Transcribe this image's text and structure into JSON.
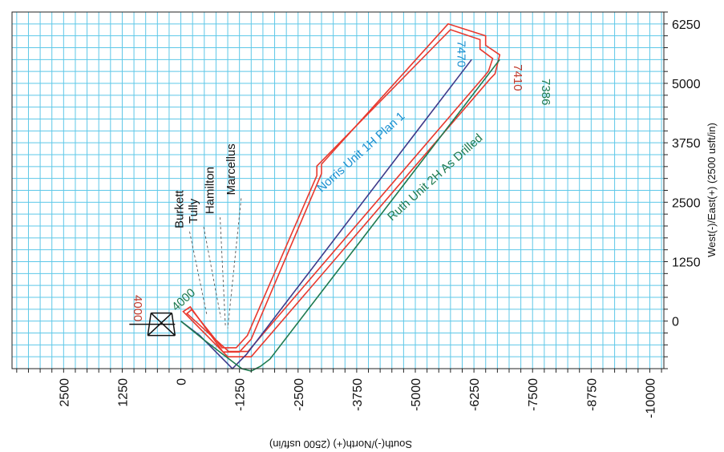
{
  "chart_data": {
    "type": "line",
    "title": "",
    "xlabel": "West(-)/East(+) (2500 usft/in)",
    "ylabel": "South(-)/North(+) (2500 usft/in)",
    "ew_range": [
      -1000,
      6500
    ],
    "ns_range": [
      3600,
      -10300
    ],
    "ew_ticks": [
      {
        "v": 0,
        "label": "0"
      },
      {
        "v": 1250,
        "label": "1250"
      },
      {
        "v": 2500,
        "label": "2500"
      },
      {
        "v": 3750,
        "label": "3750"
      },
      {
        "v": 5000,
        "label": "5000"
      },
      {
        "v": 6250,
        "label": "6250"
      }
    ],
    "ns_ticks": [
      {
        "v": 2500,
        "label": "2500"
      },
      {
        "v": 1250,
        "label": "1250"
      },
      {
        "v": 0,
        "label": "0"
      },
      {
        "v": -1250,
        "label": "-1250"
      },
      {
        "v": -2500,
        "label": "-2500"
      },
      {
        "v": -3750,
        "label": "-3750"
      },
      {
        "v": -5000,
        "label": "-5000"
      },
      {
        "v": -6250,
        "label": "-6250"
      },
      {
        "v": -7500,
        "label": "-7500"
      },
      {
        "v": -8750,
        "label": "-8750"
      },
      {
        "v": -10000,
        "label": "-10000"
      }
    ],
    "grid": true,
    "colors": {
      "grid": "#5ec8e8",
      "norris": "#3f3a8a",
      "ruth": "#1f7a4f",
      "boundary": "#e8392e",
      "norris_label": "#1a8fd0",
      "label_red": "#c0392b"
    },
    "series": [
      {
        "name": "Norris Unit 1H Plan 1",
        "key": "norris",
        "points": [
          [
            0,
            0
          ],
          [
            -300,
            -400
          ],
          [
            -600,
            -700
          ],
          [
            -900,
            -1000
          ],
          [
            -1000,
            -1100
          ],
          [
            -900,
            -1200
          ],
          [
            -700,
            -1400
          ],
          [
            5500,
            -6200
          ]
        ]
      },
      {
        "name": "Ruth Unit 2H As Drilled",
        "key": "ruth",
        "points": [
          [
            0,
            0
          ],
          [
            -400,
            -500
          ],
          [
            -700,
            -900
          ],
          [
            -1000,
            -1300
          ],
          [
            -1050,
            -1500
          ],
          [
            -950,
            -1700
          ],
          [
            -800,
            -1900
          ],
          [
            5500,
            -6800
          ]
        ]
      }
    ],
    "boundaries": [
      {
        "key": "outer",
        "points": [
          [
            300,
            -200
          ],
          [
            -650,
            -900
          ],
          [
            -650,
            -1250
          ],
          [
            -380,
            -1500
          ],
          [
            3100,
            -3000
          ],
          [
            3300,
            -3000
          ],
          [
            6250,
            -5700
          ],
          [
            6000,
            -6500
          ],
          [
            5800,
            -6500
          ],
          [
            5600,
            -6800
          ],
          [
            5200,
            -6700
          ],
          [
            5100,
            -6600
          ],
          [
            -750,
            -1500
          ],
          [
            -750,
            -1000
          ],
          [
            200,
            -50
          ]
        ]
      },
      {
        "key": "inner",
        "points": [
          [
            240,
            -230
          ],
          [
            -560,
            -880
          ],
          [
            -560,
            -1180
          ],
          [
            -300,
            -1420
          ],
          [
            3060,
            -2900
          ],
          [
            3260,
            -2900
          ],
          [
            6130,
            -5750
          ],
          [
            5920,
            -6380
          ],
          [
            5720,
            -6380
          ],
          [
            5520,
            -6650
          ],
          [
            5260,
            -6560
          ],
          [
            5160,
            -6480
          ],
          [
            -640,
            -1430
          ],
          [
            -640,
            -1020
          ],
          [
            160,
            -130
          ]
        ]
      }
    ],
    "rig": {
      "ew": 0,
      "ns": 500
    },
    "formations": [
      {
        "label": "Burkett",
        "ew": 1950,
        "ns": -50,
        "tip_ew": 150,
        "tip_ns": -550
      },
      {
        "label": "Tully",
        "ew": 2050,
        "ns": -350,
        "tip_ew": 80,
        "tip_ns": -850
      },
      {
        "label": "Hamilton",
        "ew": 2250,
        "ns": -700,
        "tip_ew": -100,
        "tip_ns": -950
      },
      {
        "label": "Marcellus",
        "ew": 2650,
        "ns": -1150,
        "tip_ew": -150,
        "tip_ns": -1000
      }
    ],
    "annotations": [
      {
        "text": "Norris Unit 1H Plan 1",
        "ew": 2700,
        "ns": -3000,
        "color_key": "norris_label"
      },
      {
        "text": "Ruth Unit 2H As Drilled",
        "ew": 2100,
        "ns": -4500,
        "color_key": "ruth"
      },
      {
        "text": "4000",
        "ew": 550,
        "ns": 1000,
        "color_key": "label_red"
      },
      {
        "text": "4000",
        "ew": 200,
        "ns": 100,
        "color_key": "ruth"
      },
      {
        "text": "7470",
        "ew": 5900,
        "ns": -5900,
        "color_key": "norris_label"
      },
      {
        "text": "7410",
        "ew": 5400,
        "ns": -7100,
        "color_key": "label_red"
      },
      {
        "text": "7386",
        "ew": 5100,
        "ns": -7700,
        "color_key": "ruth"
      }
    ]
  }
}
